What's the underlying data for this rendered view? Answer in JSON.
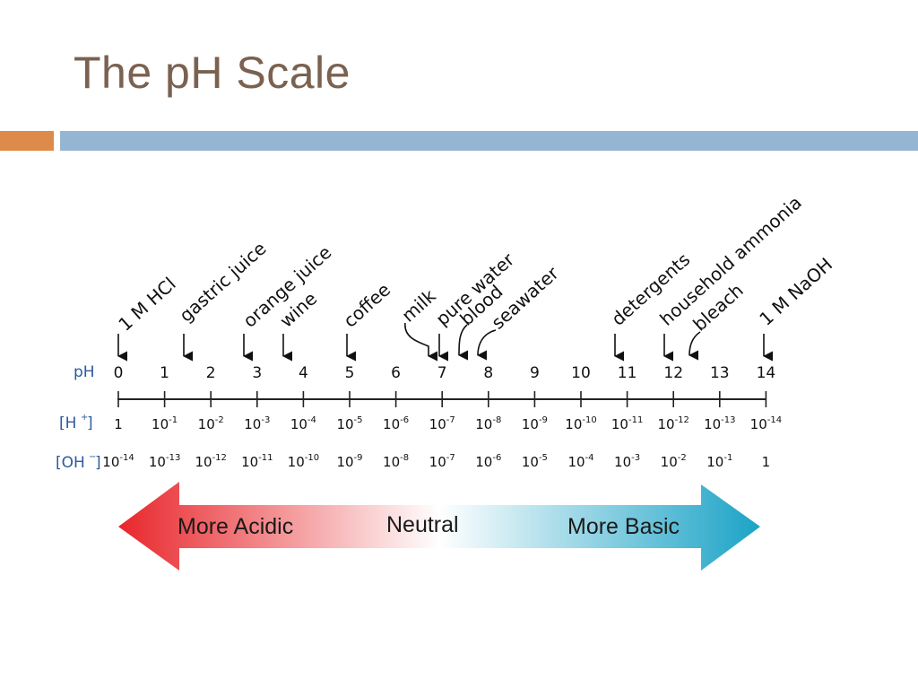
{
  "slide": {
    "title": "The pH Scale"
  },
  "diagram": {
    "row_labels": {
      "ph": "pH",
      "h": "[H+]",
      "oh": "[OH-]"
    },
    "ph_values": [
      "0",
      "1",
      "2",
      "3",
      "4",
      "5",
      "6",
      "7",
      "8",
      "9",
      "10",
      "11",
      "12",
      "13",
      "14"
    ],
    "h_concentrations": [
      "1",
      "10-1",
      "10-2",
      "10-3",
      "10-4",
      "10-5",
      "10-6",
      "10-7",
      "10-8",
      "10-9",
      "10-10",
      "10-11",
      "10-12",
      "10-13",
      "10-14"
    ],
    "oh_concentrations": [
      "10-14",
      "10-13",
      "10-12",
      "10-11",
      "10-10",
      "10-9",
      "10-8",
      "10-7",
      "10-6",
      "10-5",
      "10-4",
      "10-3",
      "10-2",
      "10-1",
      "1"
    ],
    "substances": [
      {
        "name": "1 M HCl",
        "ph": 0
      },
      {
        "name": "gastric juice",
        "ph": 1.5
      },
      {
        "name": "orange juice",
        "ph": 2.8
      },
      {
        "name": "wine",
        "ph": 3.6
      },
      {
        "name": "coffee",
        "ph": 5
      },
      {
        "name": "milk",
        "ph": 6.8
      },
      {
        "name": "pure water",
        "ph": 7
      },
      {
        "name": "blood",
        "ph": 7.4
      },
      {
        "name": "seawater",
        "ph": 7.8
      },
      {
        "name": "detergents",
        "ph": 11
      },
      {
        "name": "household ammonia",
        "ph": 12
      },
      {
        "name": "bleach",
        "ph": 12.5
      },
      {
        "name": "1 M NaOH",
        "ph": 14
      }
    ],
    "arrow": {
      "acidic_label": "More Acidic",
      "neutral_label": "Neutral",
      "basic_label": "More Basic",
      "acidic_color": "#e8262b",
      "neutral_color": "#ffffff",
      "basic_color": "#1ba3c6"
    }
  }
}
